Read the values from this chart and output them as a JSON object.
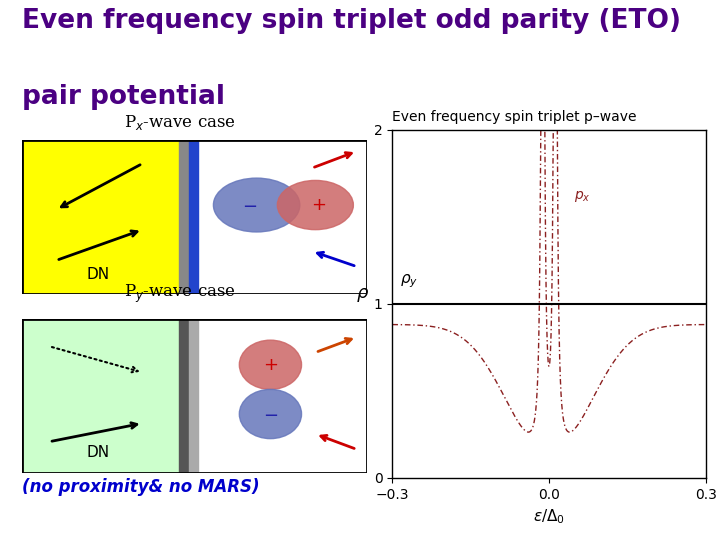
{
  "title_line1": "Even frequency spin triplet odd parity (ETO)",
  "title_line2": "pair potential",
  "title_color": "#4B0082",
  "title_fontsize": 19,
  "bg_color": "#ffffff",
  "px_label": "P$_x$-wave case",
  "py_label": "P$_y$-wave case",
  "no_proximity_label": "(no proximity& no MARS)",
  "no_proximity_color": "#0000cc",
  "plot_title": "Even frequency spin triplet p–wave",
  "xlabel": "ε/Δ$_0$",
  "ylabel": "ρ",
  "xlim": [
    -0.3,
    0.3
  ],
  "ylim": [
    0,
    2
  ],
  "yticks": [
    0,
    1,
    2
  ],
  "xticks": [
    -0.3,
    0,
    0.3
  ],
  "rho_y_label": "ρ$_y$",
  "px_curve_label": "p$_x$",
  "curve_color": "#8B2020"
}
